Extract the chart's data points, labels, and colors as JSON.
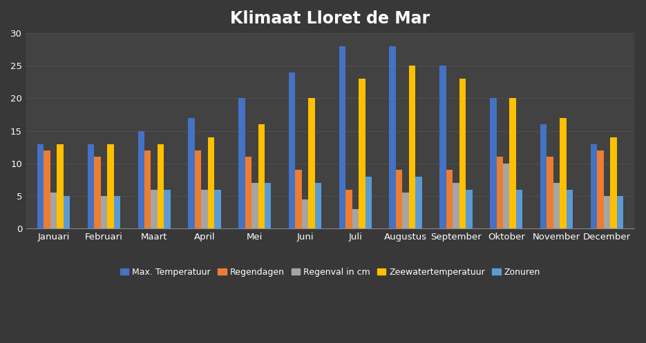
{
  "title": "Klimaat Lloret de Mar",
  "months": [
    "Januari",
    "Februari",
    "Maart",
    "April",
    "Mei",
    "Juni",
    "Juli",
    "Augustus",
    "September",
    "Oktober",
    "November",
    "December"
  ],
  "series": [
    {
      "label": "Max. Temperatuur",
      "color": "#4472C4",
      "values": [
        13,
        13,
        15,
        17,
        20,
        24,
        28,
        28,
        25,
        20,
        16,
        13
      ]
    },
    {
      "label": "Regendagen",
      "color": "#ED7D31",
      "values": [
        12,
        11,
        12,
        12,
        11,
        9,
        6,
        9,
        9,
        11,
        11,
        12
      ]
    },
    {
      "label": "Regenval in cm",
      "color": "#A5A5A5",
      "values": [
        5.5,
        5,
        6,
        6,
        7,
        4.5,
        3,
        5.5,
        7,
        10,
        7,
        5
      ]
    },
    {
      "label": "Zeewatertemperatuur",
      "color": "#FFC000",
      "values": [
        13,
        13,
        13,
        14,
        16,
        20,
        23,
        25,
        23,
        20,
        17,
        14
      ]
    },
    {
      "label": "Zonuren",
      "color": "#5B9BD5",
      "values": [
        5,
        5,
        6,
        6,
        7,
        7,
        8,
        8,
        6,
        6,
        6,
        5
      ]
    }
  ],
  "ylim": [
    0,
    30
  ],
  "yticks": [
    0,
    5,
    10,
    15,
    20,
    25,
    30
  ],
  "background_color": "#383838",
  "plot_area_color": "#424242",
  "grid_color": "#505050",
  "text_color": "#FFFFFF",
  "title_fontsize": 17,
  "axis_fontsize": 9.5,
  "legend_fontsize": 9
}
